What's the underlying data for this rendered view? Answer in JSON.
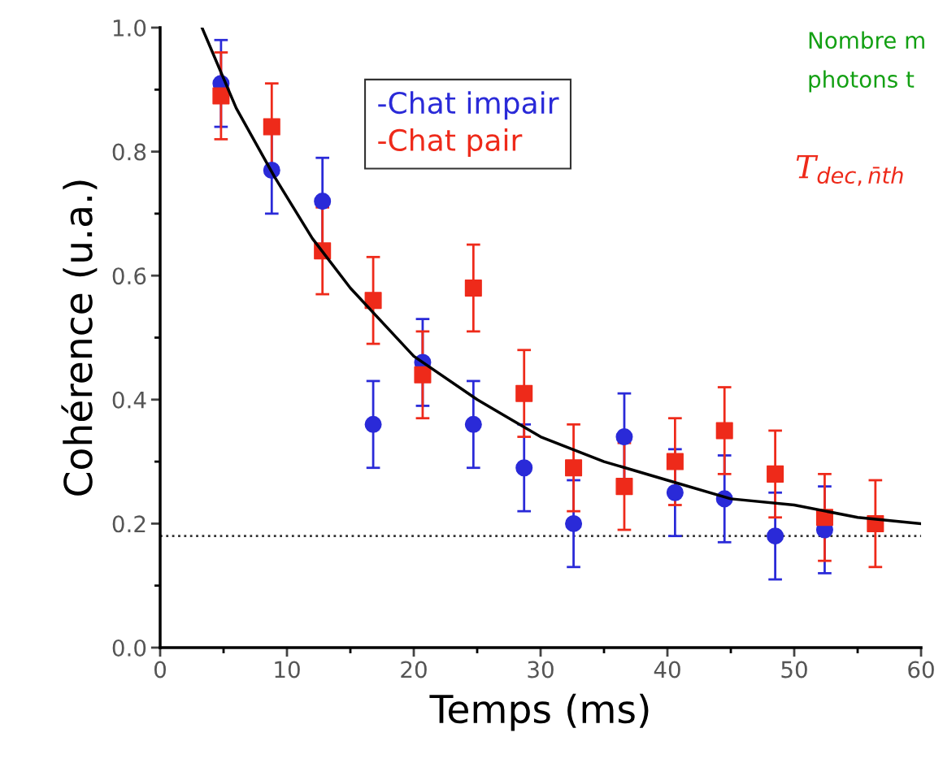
{
  "chart_data": {
    "type": "scatter",
    "xlabel": "Temps (ms)",
    "ylabel": "Cohérence (u.a.)",
    "xlim": [
      0,
      60
    ],
    "xticks": [
      0,
      10,
      20,
      30,
      40,
      50,
      60
    ],
    "ylim": [
      0,
      1
    ],
    "yticks": [
      {
        "value": 0,
        "label": "0.0"
      },
      {
        "value": 0.2,
        "label": "0.2"
      },
      {
        "value": 0.4,
        "label": "0.4"
      },
      {
        "value": 0.6,
        "label": "0.6"
      },
      {
        "value": 0.8,
        "label": "0.8"
      },
      {
        "value": 1,
        "label": "1.0"
      }
    ],
    "x": [
      4.8,
      8.8,
      12.8,
      16.8,
      20.7,
      24.7,
      28.7,
      32.6,
      36.6,
      40.6,
      44.5,
      48.5,
      52.4,
      56.4
    ],
    "series": [
      {
        "name": "-Chat impair",
        "color": "#2a2ad8",
        "marker": "circle",
        "values": [
          0.91,
          0.77,
          0.72,
          0.36,
          0.46,
          0.36,
          0.29,
          0.2,
          0.34,
          0.25,
          0.24,
          0.18,
          0.19,
          null
        ],
        "errors": [
          0.07,
          0.07,
          0.07,
          0.07,
          0.07,
          0.07,
          0.07,
          0.07,
          0.07,
          0.07,
          0.07,
          0.07,
          0.07,
          null
        ]
      },
      {
        "name": "-Chat pair",
        "color": "#ee2a1a",
        "marker": "square",
        "values": [
          0.89,
          0.84,
          0.64,
          0.56,
          0.44,
          0.58,
          0.41,
          0.29,
          0.26,
          0.3,
          0.35,
          0.28,
          0.21,
          0.2
        ],
        "errors": [
          0.07,
          0.07,
          0.07,
          0.07,
          0.07,
          0.07,
          0.07,
          0.07,
          0.07,
          0.07,
          0.07,
          0.07,
          0.07,
          0.07
        ]
      },
      {
        "type": "line",
        "color": "#000000",
        "marker": "none",
        "x": [
          3.3,
          6,
          9,
          12,
          15,
          20,
          25,
          30,
          35,
          40,
          45,
          50,
          55,
          60
        ],
        "values": [
          1.0,
          0.87,
          0.76,
          0.66,
          0.58,
          0.47,
          0.4,
          0.34,
          0.3,
          0.27,
          0.24,
          0.23,
          0.21,
          0.2
        ]
      }
    ],
    "ref_lines": [
      {
        "axis": "y",
        "value": 0.18,
        "color": "#333333",
        "line_style": "dotted"
      }
    ],
    "legend": "top",
    "grid": false,
    "annotations": [
      "Nombre m",
      "photons t",
      "T$_{dec,n̄th}$"
    ]
  }
}
